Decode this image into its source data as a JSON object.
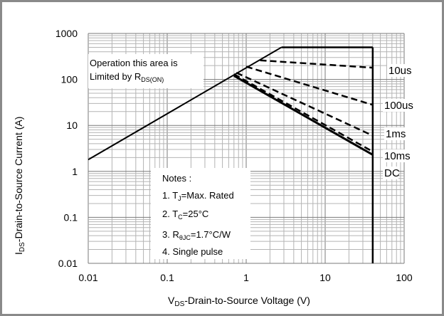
{
  "chart_data": {
    "type": "line",
    "xscale": "log",
    "yscale": "log",
    "xlim": [
      0.01,
      100
    ],
    "ylim": [
      0.01,
      1000
    ],
    "grid": true,
    "xlabel": {
      "main": "V",
      "sub": "DS",
      "rest": "-Drain-to-Source Voltage  (V)"
    },
    "ylabel": {
      "main": "I",
      "sub": "DS",
      "rest": "-Drain-to-Source Current (A)"
    },
    "x_ticks": [
      "0.01",
      "0.1",
      "1",
      "10",
      "100"
    ],
    "y_ticks": [
      "0.01",
      "0.1",
      "1",
      "10",
      "100",
      "1000"
    ],
    "annotation": {
      "line1": "Operation this area is",
      "line2_main": "Limited  by R",
      "line2_sub": "DS(ON)"
    },
    "rdson_limit": {
      "x": [
        0.01,
        2.8
      ],
      "y": [
        1.8,
        500
      ]
    },
    "current_limit": {
      "x": [
        2.8,
        40
      ],
      "y": [
        500,
        500
      ]
    },
    "vds_limit": {
      "x": [
        40,
        40
      ],
      "y": [
        500,
        0.01
      ]
    },
    "series": [
      {
        "name": "10us",
        "x": [
          1.5,
          40
        ],
        "y": [
          260,
          180
        ],
        "style": "dashed"
      },
      {
        "name": "100us",
        "x": [
          1.0,
          40
        ],
        "y": [
          190,
          28
        ],
        "style": "dashed"
      },
      {
        "name": "1ms",
        "x": [
          0.75,
          40
        ],
        "y": [
          140,
          6
        ],
        "style": "dashed"
      },
      {
        "name": "10ms",
        "x": [
          0.7,
          40
        ],
        "y": [
          130,
          2.7
        ],
        "style": "dashed"
      },
      {
        "name": "DC",
        "x": [
          0.7,
          40
        ],
        "y": [
          120,
          2.3
        ],
        "style": "solid"
      }
    ],
    "notes": {
      "title": "Notes :",
      "n1": {
        "pre": "1. T",
        "sub": "J",
        "post": "=Max. Rated"
      },
      "n2": {
        "pre": "2. T",
        "sub": "C",
        "post": "=25°C"
      },
      "n3": {
        "pre": "3. R",
        "sub": "θJC",
        "post": "=1.7°C/W"
      },
      "n4": "4. Single pulse"
    }
  }
}
